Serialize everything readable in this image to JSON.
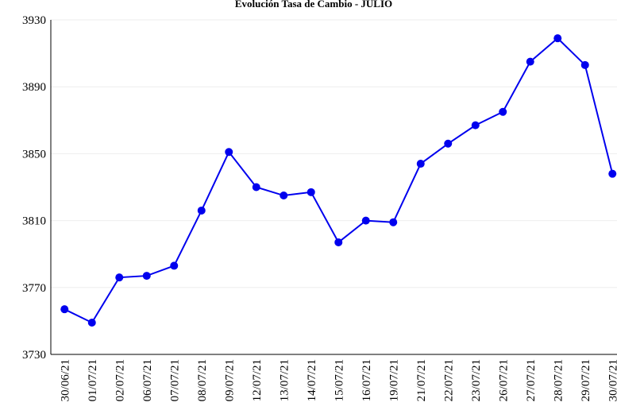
{
  "chart_data": {
    "type": "line",
    "title": "Evolución Tasa de Cambio - JULIO",
    "categories": [
      "30/06/21",
      "01/07/21",
      "02/07/21",
      "06/07/21",
      "07/07/21",
      "08/07/21",
      "09/07/21",
      "12/07/21",
      "13/07/21",
      "14/07/21",
      "15/07/21",
      "16/07/21",
      "19/07/21",
      "21/07/21",
      "22/07/21",
      "23/07/21",
      "26/07/21",
      "27/07/21",
      "28/07/21",
      "29/07/21",
      "30/07/21"
    ],
    "series": [
      {
        "name": "Tasa de Cambio",
        "color": "#0000ee",
        "values": [
          3757,
          3749,
          3776,
          3777,
          3783,
          3816,
          3851,
          3830,
          3825,
          3827,
          3797,
          3810,
          3809,
          3844,
          3856,
          3867,
          3875,
          3905,
          3919,
          3903,
          3838
        ]
      }
    ],
    "ylim": [
      3730,
      3930
    ],
    "yticks": [
      3730,
      3770,
      3810,
      3850,
      3890,
      3930
    ],
    "grid": true
  }
}
